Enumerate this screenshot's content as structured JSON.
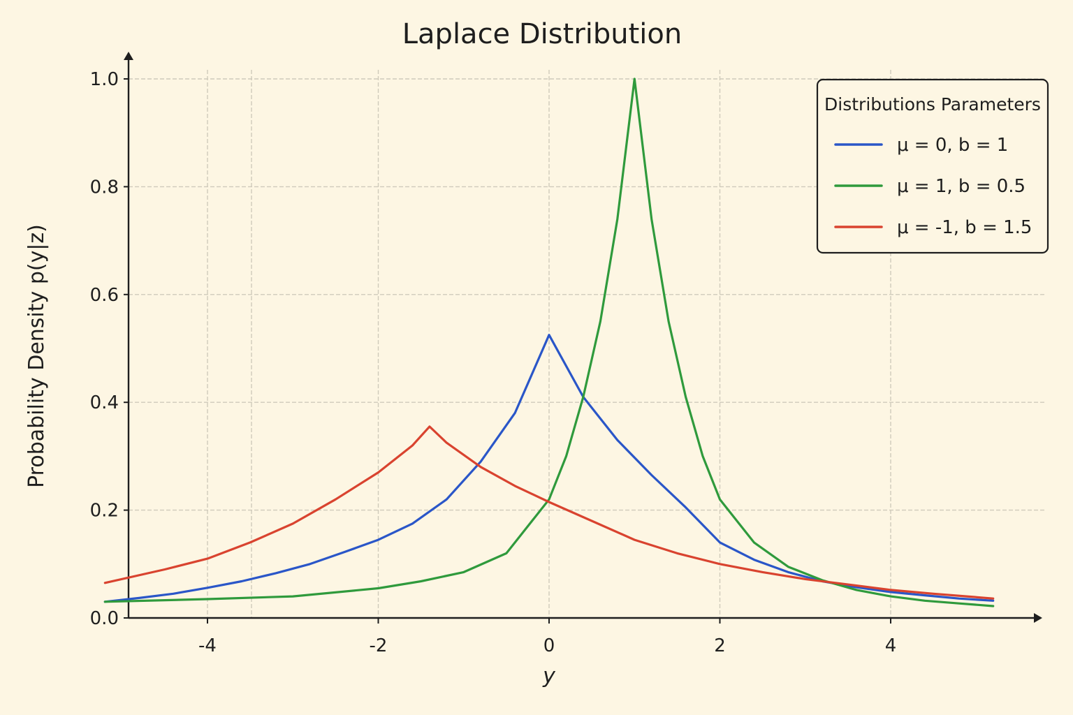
{
  "chart_data": {
    "type": "line",
    "title": "Laplace Distribution",
    "xlabel": "y",
    "ylabel": "Probability Density p(y|z)",
    "xlim": [
      -5.3,
      5.3
    ],
    "ylim": [
      0,
      1.0
    ],
    "xticks": [
      -4,
      -2,
      0,
      2,
      4
    ],
    "xtick_labels": [
      "-4",
      "-2",
      "0",
      "2",
      "4"
    ],
    "yticks": [
      0,
      0.2,
      0.4,
      0.6,
      0.8,
      1.0
    ],
    "ytick_labels": [
      "0.0",
      "0.2",
      "0.4",
      "0.6",
      "0.8",
      "1.0"
    ],
    "grid": true,
    "legend": {
      "title": "Distributions Parameters",
      "position": "top-right"
    },
    "series": [
      {
        "name": "μ = 0, b = 1",
        "color": "#2a56c8",
        "x": [
          -5.2,
          -4.8,
          -4.4,
          -4.0,
          -3.6,
          -3.2,
          -2.8,
          -2.4,
          -2.0,
          -1.6,
          -1.2,
          -0.8,
          -0.4,
          0.0,
          0.4,
          0.8,
          1.2,
          1.6,
          2.0,
          2.4,
          2.8,
          3.2,
          3.6,
          4.0,
          4.4,
          4.8,
          5.2
        ],
        "y": [
          0.03,
          0.037,
          0.045,
          0.056,
          0.068,
          0.083,
          0.1,
          0.122,
          0.145,
          0.175,
          0.22,
          0.29,
          0.38,
          0.525,
          0.41,
          0.33,
          0.265,
          0.205,
          0.14,
          0.108,
          0.085,
          0.068,
          0.057,
          0.048,
          0.042,
          0.036,
          0.032
        ]
      },
      {
        "name": "μ = 1, b = 0.5",
        "color": "#2f9a3c",
        "x": [
          -5.2,
          -4.0,
          -3.0,
          -2.0,
          -1.5,
          -1.0,
          -0.5,
          0.0,
          0.2,
          0.4,
          0.6,
          0.8,
          1.0,
          1.2,
          1.4,
          1.6,
          1.8,
          2.0,
          2.4,
          2.8,
          3.2,
          3.6,
          4.0,
          4.4,
          4.8,
          5.2
        ],
        "y": [
          0.03,
          0.035,
          0.04,
          0.055,
          0.068,
          0.085,
          0.12,
          0.22,
          0.3,
          0.41,
          0.55,
          0.74,
          1.0,
          0.74,
          0.55,
          0.41,
          0.3,
          0.22,
          0.14,
          0.095,
          0.07,
          0.052,
          0.04,
          0.032,
          0.027,
          0.022
        ]
      },
      {
        "name": "μ = -1, b = 1.5",
        "color": "#d9432f",
        "x": [
          -5.2,
          -4.5,
          -4.0,
          -3.5,
          -3.0,
          -2.5,
          -2.0,
          -1.6,
          -1.4,
          -1.2,
          -0.8,
          -0.4,
          0.0,
          0.5,
          1.0,
          1.5,
          2.0,
          2.5,
          3.0,
          3.5,
          4.0,
          4.5,
          5.2
        ],
        "y": [
          0.065,
          0.09,
          0.11,
          0.14,
          0.175,
          0.22,
          0.27,
          0.32,
          0.355,
          0.325,
          0.28,
          0.245,
          0.215,
          0.18,
          0.145,
          0.12,
          0.1,
          0.085,
          0.072,
          0.062,
          0.052,
          0.045,
          0.036
        ]
      }
    ]
  }
}
